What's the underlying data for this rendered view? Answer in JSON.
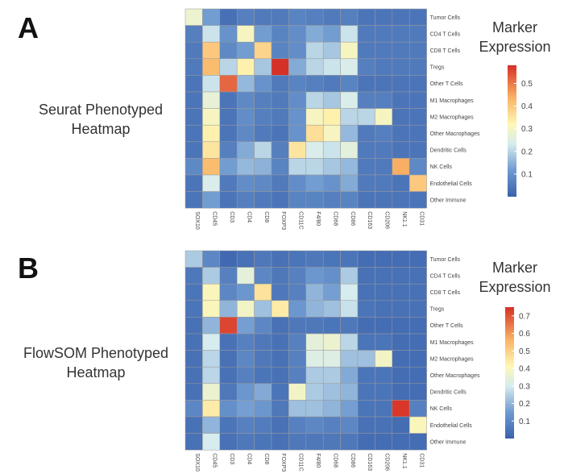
{
  "figure": {
    "panel_a": {
      "letter": "A",
      "title_line1": "Seurat Phenotyped",
      "title_line2": "Heatmap",
      "legend_line1": "Marker",
      "legend_line2": "Expression"
    },
    "panel_b": {
      "letter": "B",
      "title_line1": "FlowSOM Phenotyped",
      "title_line2": "Heatmap",
      "legend_line1": "Marker",
      "legend_line2": "Expression"
    }
  },
  "chart_data": [
    {
      "type": "heatmap",
      "title": "Seurat Phenotyped Heatmap",
      "legend_title": "Marker Expression",
      "x_labels": [
        "SOX10",
        "CD45",
        "CD3",
        "CD4",
        "CD8",
        "FOXP3",
        "CD11C",
        "F4/80",
        "CD68",
        "CD86",
        "CD163",
        "CD206",
        "NK1.1",
        "CD31"
      ],
      "y_labels": [
        "Tumor Cells",
        "CD4 T Cells",
        "CD8 T Cells",
        "Tregs",
        "Other T Cells",
        "M1 Macrophages",
        "M2 Macrophages",
        "Other Macrophages",
        "Dendritic Cells",
        "NK Cells",
        "Endothelial Cells",
        "Other Immune"
      ],
      "color_range": [
        0.0,
        0.58
      ],
      "legend_ticks": [
        0.1,
        0.2,
        0.3,
        0.4,
        0.5
      ],
      "values": [
        [
          0.28,
          0.12,
          0.03,
          0.06,
          0.05,
          0.05,
          0.07,
          0.06,
          0.05,
          0.06,
          0.04,
          0.04,
          0.04,
          0.04
        ],
        [
          0.06,
          0.22,
          0.1,
          0.3,
          0.12,
          0.07,
          0.09,
          0.14,
          0.12,
          0.22,
          0.05,
          0.05,
          0.05,
          0.05
        ],
        [
          0.05,
          0.4,
          0.08,
          0.12,
          0.38,
          0.07,
          0.09,
          0.2,
          0.18,
          0.3,
          0.05,
          0.05,
          0.05,
          0.05
        ],
        [
          0.05,
          0.42,
          0.2,
          0.33,
          0.18,
          0.6,
          0.14,
          0.2,
          0.22,
          0.24,
          0.06,
          0.05,
          0.05,
          0.05
        ],
        [
          0.04,
          0.22,
          0.52,
          0.16,
          0.1,
          0.05,
          0.07,
          0.06,
          0.05,
          0.07,
          0.04,
          0.04,
          0.04,
          0.04
        ],
        [
          0.04,
          0.27,
          0.04,
          0.08,
          0.06,
          0.05,
          0.09,
          0.2,
          0.18,
          0.24,
          0.06,
          0.06,
          0.04,
          0.04
        ],
        [
          0.04,
          0.3,
          0.04,
          0.09,
          0.06,
          0.05,
          0.1,
          0.3,
          0.33,
          0.2,
          0.2,
          0.3,
          0.04,
          0.04
        ],
        [
          0.04,
          0.33,
          0.04,
          0.08,
          0.05,
          0.04,
          0.1,
          0.36,
          0.3,
          0.16,
          0.05,
          0.06,
          0.04,
          0.04
        ],
        [
          0.04,
          0.35,
          0.06,
          0.14,
          0.2,
          0.06,
          0.35,
          0.24,
          0.22,
          0.26,
          0.05,
          0.05,
          0.04,
          0.04
        ],
        [
          0.08,
          0.42,
          0.12,
          0.16,
          0.15,
          0.07,
          0.2,
          0.2,
          0.18,
          0.16,
          0.05,
          0.05,
          0.44,
          0.08
        ],
        [
          0.04,
          0.24,
          0.05,
          0.09,
          0.08,
          0.05,
          0.09,
          0.12,
          0.1,
          0.14,
          0.05,
          0.05,
          0.04,
          0.4
        ],
        [
          0.04,
          0.12,
          0.04,
          0.06,
          0.05,
          0.04,
          0.07,
          0.07,
          0.06,
          0.07,
          0.04,
          0.04,
          0.04,
          0.04
        ]
      ]
    },
    {
      "type": "heatmap",
      "title": "FlowSOM Phenotyped Heatmap",
      "legend_title": "Marker Expression",
      "x_labels": [
        "SOX10",
        "CD45",
        "CD3",
        "CD4",
        "CD8",
        "FOXP3",
        "CD11C",
        "F4/80",
        "CD68",
        "CD86",
        "CD163",
        "CD206",
        "NK1.1",
        "CD31"
      ],
      "y_labels": [
        "Tumor Cells",
        "CD4 T Cells",
        "CD8 T Cells",
        "Tregs",
        "Other T Cells",
        "M1 Macrophages",
        "M2 Macrophages",
        "Other Macrophages",
        "Dendritic Cells",
        "NK Cells",
        "Endothelial Cells",
        "Other Immune"
      ],
      "color_range": [
        0.0,
        0.75
      ],
      "legend_ticks": [
        0.1,
        0.2,
        0.3,
        0.4,
        0.5,
        0.6,
        0.7
      ],
      "values": [
        [
          0.24,
          0.1,
          0.02,
          0.04,
          0.06,
          0.04,
          0.05,
          0.06,
          0.05,
          0.05,
          0.03,
          0.03,
          0.03,
          0.03
        ],
        [
          0.06,
          0.24,
          0.08,
          0.34,
          0.1,
          0.06,
          0.08,
          0.14,
          0.12,
          0.24,
          0.04,
          0.04,
          0.04,
          0.04
        ],
        [
          0.05,
          0.4,
          0.1,
          0.14,
          0.46,
          0.06,
          0.08,
          0.2,
          0.16,
          0.3,
          0.04,
          0.04,
          0.04,
          0.04
        ],
        [
          0.05,
          0.4,
          0.2,
          0.38,
          0.22,
          0.44,
          0.14,
          0.2,
          0.22,
          0.28,
          0.05,
          0.04,
          0.04,
          0.04
        ],
        [
          0.04,
          0.2,
          0.72,
          0.16,
          0.1,
          0.04,
          0.06,
          0.06,
          0.05,
          0.06,
          0.03,
          0.03,
          0.03,
          0.03
        ],
        [
          0.04,
          0.3,
          0.04,
          0.08,
          0.06,
          0.04,
          0.08,
          0.34,
          0.36,
          0.26,
          0.05,
          0.05,
          0.03,
          0.03
        ],
        [
          0.04,
          0.26,
          0.04,
          0.1,
          0.06,
          0.04,
          0.08,
          0.32,
          0.32,
          0.22,
          0.22,
          0.38,
          0.03,
          0.03
        ],
        [
          0.04,
          0.26,
          0.04,
          0.08,
          0.05,
          0.04,
          0.08,
          0.24,
          0.24,
          0.18,
          0.05,
          0.05,
          0.03,
          0.03
        ],
        [
          0.04,
          0.36,
          0.06,
          0.14,
          0.18,
          0.05,
          0.38,
          0.24,
          0.22,
          0.2,
          0.05,
          0.05,
          0.03,
          0.03
        ],
        [
          0.1,
          0.44,
          0.12,
          0.16,
          0.14,
          0.06,
          0.22,
          0.22,
          0.2,
          0.16,
          0.05,
          0.05,
          0.74,
          0.08
        ],
        [
          0.04,
          0.2,
          0.05,
          0.08,
          0.07,
          0.04,
          0.08,
          0.1,
          0.08,
          0.1,
          0.04,
          0.04,
          0.03,
          0.4
        ],
        [
          0.04,
          0.3,
          0.04,
          0.06,
          0.05,
          0.04,
          0.06,
          0.06,
          0.06,
          0.06,
          0.03,
          0.03,
          0.03,
          0.03
        ]
      ]
    }
  ]
}
